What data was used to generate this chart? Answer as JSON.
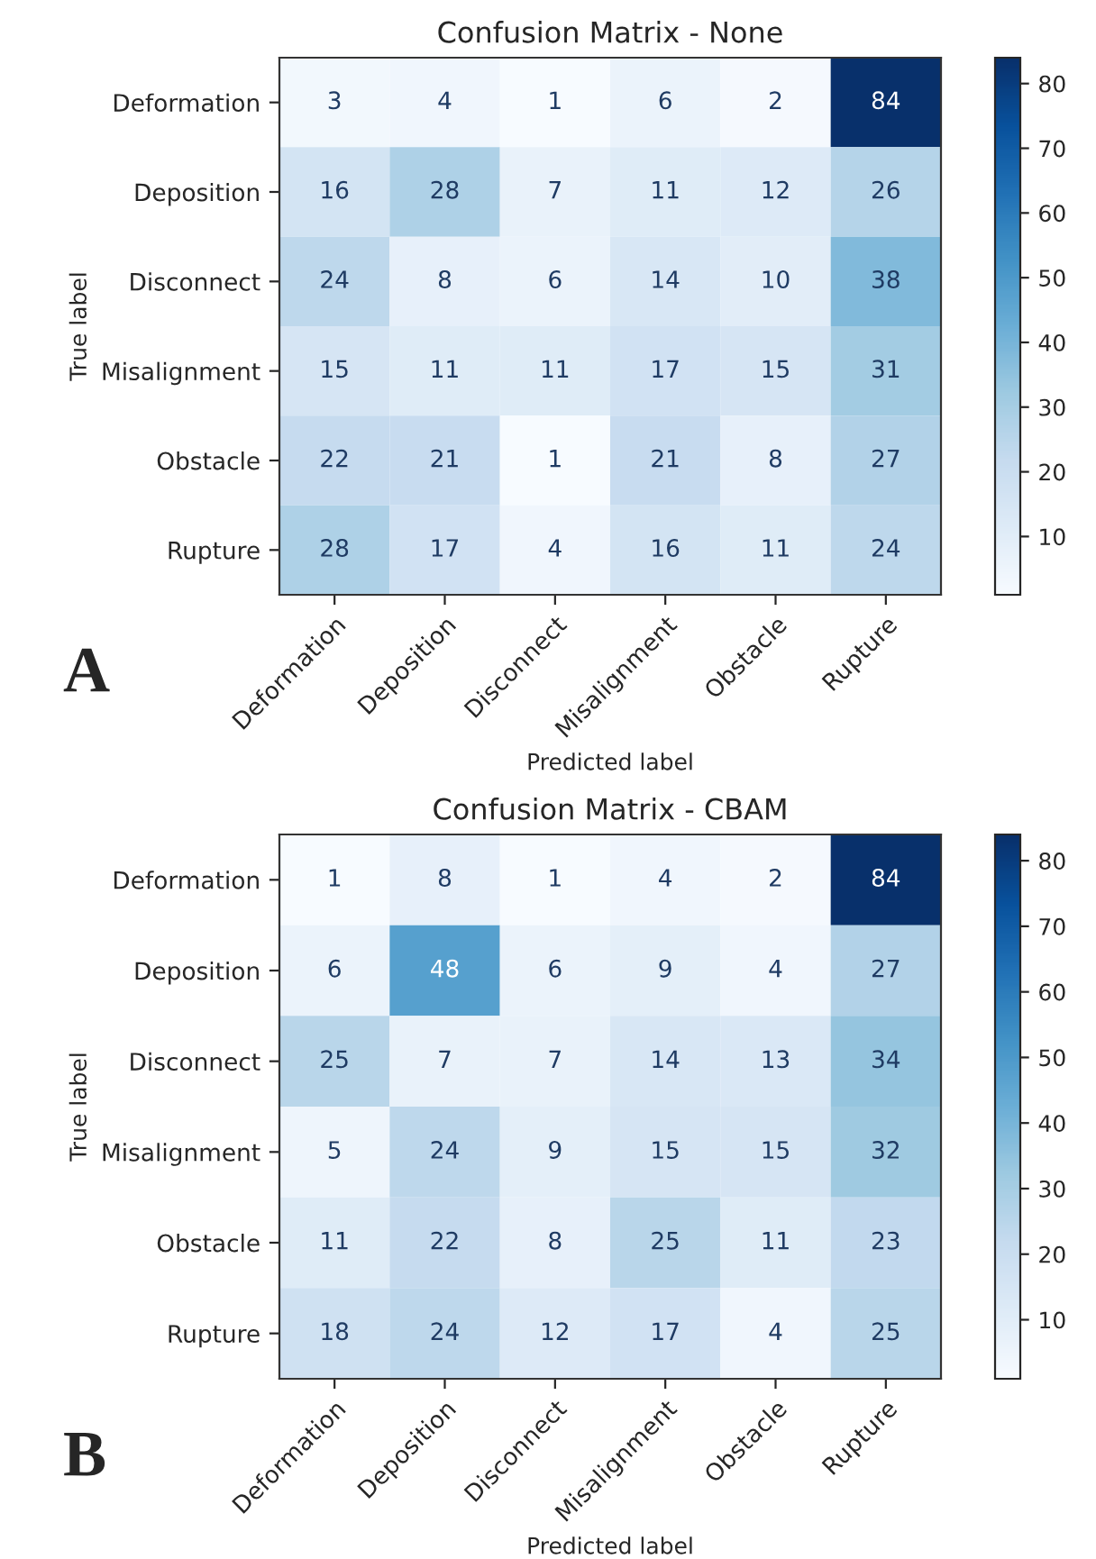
{
  "chart_data": [
    {
      "type": "heatmap",
      "title": "Confusion Matrix - None",
      "xlabel": "Predicted label",
      "ylabel": "True label",
      "annotations": [
        "A"
      ],
      "categories": [
        "Deformation",
        "Deposition",
        "Disconnect",
        "Misalignment",
        "Obstacle",
        "Rupture"
      ],
      "y_categories": [
        "Deformation",
        "Deposition",
        "Disconnect",
        "Misalignment",
        "Obstacle",
        "Rupture"
      ],
      "cells": [
        [
          3,
          4,
          1,
          6,
          2,
          84
        ],
        [
          16,
          28,
          7,
          11,
          12,
          26
        ],
        [
          24,
          8,
          6,
          14,
          10,
          38
        ],
        [
          15,
          11,
          11,
          17,
          15,
          31
        ],
        [
          22,
          21,
          1,
          21,
          8,
          27
        ],
        [
          28,
          17,
          4,
          16,
          11,
          24
        ]
      ],
      "data_labels": true,
      "clim": [
        1,
        84
      ],
      "cticks": [
        10,
        20,
        30,
        40,
        50,
        60,
        70,
        80
      ]
    },
    {
      "type": "heatmap",
      "title": "Confusion Matrix - CBAM",
      "xlabel": "Predicted label",
      "ylabel": "True label",
      "annotations": [
        "B"
      ],
      "categories": [
        "Deformation",
        "Deposition",
        "Disconnect",
        "Misalignment",
        "Obstacle",
        "Rupture"
      ],
      "y_categories": [
        "Deformation",
        "Deposition",
        "Disconnect",
        "Misalignment",
        "Obstacle",
        "Rupture"
      ],
      "cells": [
        [
          1,
          8,
          1,
          4,
          2,
          84
        ],
        [
          6,
          48,
          6,
          9,
          4,
          27
        ],
        [
          25,
          7,
          7,
          14,
          13,
          34
        ],
        [
          5,
          24,
          9,
          15,
          15,
          32
        ],
        [
          11,
          22,
          8,
          25,
          11,
          23
        ],
        [
          18,
          24,
          12,
          17,
          4,
          25
        ]
      ],
      "data_labels": true,
      "clim": [
        1,
        84
      ],
      "cticks": [
        10,
        20,
        30,
        40,
        50,
        60,
        70,
        80
      ]
    }
  ]
}
